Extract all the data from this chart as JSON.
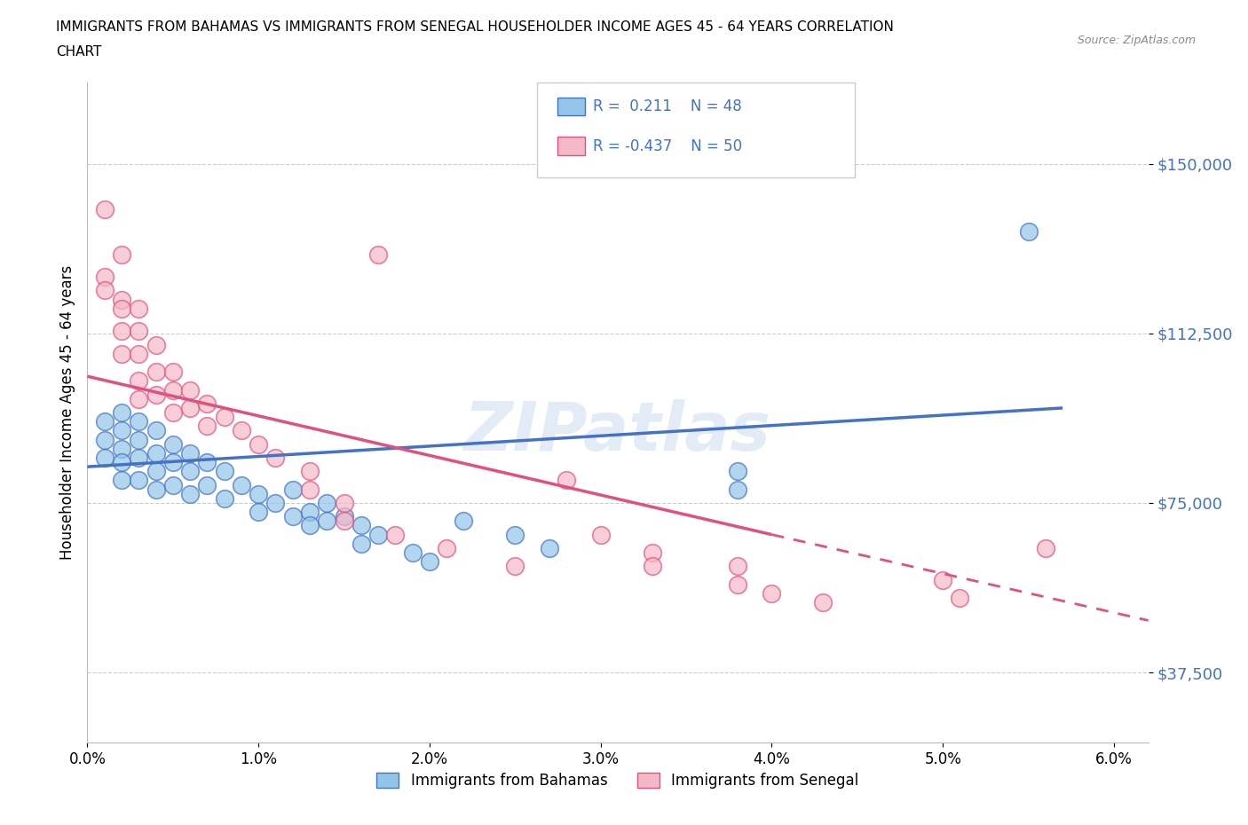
{
  "title_line1": "IMMIGRANTS FROM BAHAMAS VS IMMIGRANTS FROM SENEGAL HOUSEHOLDER INCOME AGES 45 - 64 YEARS CORRELATION",
  "title_line2": "CHART",
  "source_text": "Source: ZipAtlas.com",
  "ylabel": "Householder Income Ages 45 - 64 years",
  "xlim": [
    0.0,
    0.062
  ],
  "ylim": [
    22000,
    168000
  ],
  "xtick_labels": [
    "0.0%",
    "1.0%",
    "2.0%",
    "3.0%",
    "4.0%",
    "5.0%",
    "6.0%"
  ],
  "xtick_values": [
    0.0,
    0.01,
    0.02,
    0.03,
    0.04,
    0.05,
    0.06
  ],
  "ytick_values": [
    37500,
    75000,
    112500,
    150000
  ],
  "ytick_labels": [
    "$37,500",
    "$75,000",
    "$112,500",
    "$150,000"
  ],
  "color_bahamas": "#92C5E8",
  "color_senegal": "#F4B8C8",
  "color_line_bahamas": "#4472C4",
  "color_line_senegal": "#E05080",
  "watermark": "ZIPatlas",
  "bahamas_scatter": [
    [
      0.001,
      93000
    ],
    [
      0.001,
      89000
    ],
    [
      0.001,
      85000
    ],
    [
      0.002,
      95000
    ],
    [
      0.002,
      91000
    ],
    [
      0.002,
      87000
    ],
    [
      0.002,
      84000
    ],
    [
      0.002,
      80000
    ],
    [
      0.003,
      93000
    ],
    [
      0.003,
      89000
    ],
    [
      0.003,
      85000
    ],
    [
      0.003,
      80000
    ],
    [
      0.004,
      91000
    ],
    [
      0.004,
      86000
    ],
    [
      0.004,
      82000
    ],
    [
      0.004,
      78000
    ],
    [
      0.005,
      88000
    ],
    [
      0.005,
      84000
    ],
    [
      0.005,
      79000
    ],
    [
      0.006,
      86000
    ],
    [
      0.006,
      82000
    ],
    [
      0.006,
      77000
    ],
    [
      0.007,
      84000
    ],
    [
      0.007,
      79000
    ],
    [
      0.008,
      82000
    ],
    [
      0.008,
      76000
    ],
    [
      0.009,
      79000
    ],
    [
      0.01,
      77000
    ],
    [
      0.01,
      73000
    ],
    [
      0.011,
      75000
    ],
    [
      0.012,
      78000
    ],
    [
      0.012,
      72000
    ],
    [
      0.013,
      73000
    ],
    [
      0.013,
      70000
    ],
    [
      0.014,
      75000
    ],
    [
      0.014,
      71000
    ],
    [
      0.015,
      72000
    ],
    [
      0.016,
      70000
    ],
    [
      0.016,
      66000
    ],
    [
      0.017,
      68000
    ],
    [
      0.019,
      64000
    ],
    [
      0.02,
      62000
    ],
    [
      0.022,
      71000
    ],
    [
      0.025,
      68000
    ],
    [
      0.027,
      65000
    ],
    [
      0.038,
      82000
    ],
    [
      0.038,
      78000
    ],
    [
      0.055,
      135000
    ]
  ],
  "senegal_scatter": [
    [
      0.001,
      140000
    ],
    [
      0.001,
      125000
    ],
    [
      0.001,
      122000
    ],
    [
      0.002,
      130000
    ],
    [
      0.002,
      120000
    ],
    [
      0.002,
      118000
    ],
    [
      0.002,
      113000
    ],
    [
      0.002,
      108000
    ],
    [
      0.003,
      118000
    ],
    [
      0.003,
      113000
    ],
    [
      0.003,
      108000
    ],
    [
      0.003,
      102000
    ],
    [
      0.003,
      98000
    ],
    [
      0.004,
      110000
    ],
    [
      0.004,
      104000
    ],
    [
      0.004,
      99000
    ],
    [
      0.005,
      104000
    ],
    [
      0.005,
      100000
    ],
    [
      0.005,
      95000
    ],
    [
      0.006,
      100000
    ],
    [
      0.006,
      96000
    ],
    [
      0.007,
      97000
    ],
    [
      0.007,
      92000
    ],
    [
      0.008,
      94000
    ],
    [
      0.009,
      91000
    ],
    [
      0.01,
      88000
    ],
    [
      0.011,
      85000
    ],
    [
      0.013,
      82000
    ],
    [
      0.013,
      78000
    ],
    [
      0.015,
      75000
    ],
    [
      0.015,
      71000
    ],
    [
      0.017,
      130000
    ],
    [
      0.018,
      68000
    ],
    [
      0.021,
      65000
    ],
    [
      0.025,
      61000
    ],
    [
      0.028,
      80000
    ],
    [
      0.03,
      68000
    ],
    [
      0.033,
      64000
    ],
    [
      0.033,
      61000
    ],
    [
      0.038,
      61000
    ],
    [
      0.038,
      57000
    ],
    [
      0.04,
      55000
    ],
    [
      0.043,
      53000
    ],
    [
      0.05,
      58000
    ],
    [
      0.051,
      54000
    ],
    [
      0.056,
      65000
    ]
  ],
  "bahamas_trendline": [
    [
      0.0,
      83000
    ],
    [
      0.057,
      96000
    ]
  ],
  "senegal_trendline_solid": [
    [
      0.0,
      103000
    ],
    [
      0.04,
      68000
    ]
  ],
  "senegal_trendline_dashed": [
    [
      0.04,
      68000
    ],
    [
      0.062,
      49000
    ]
  ]
}
